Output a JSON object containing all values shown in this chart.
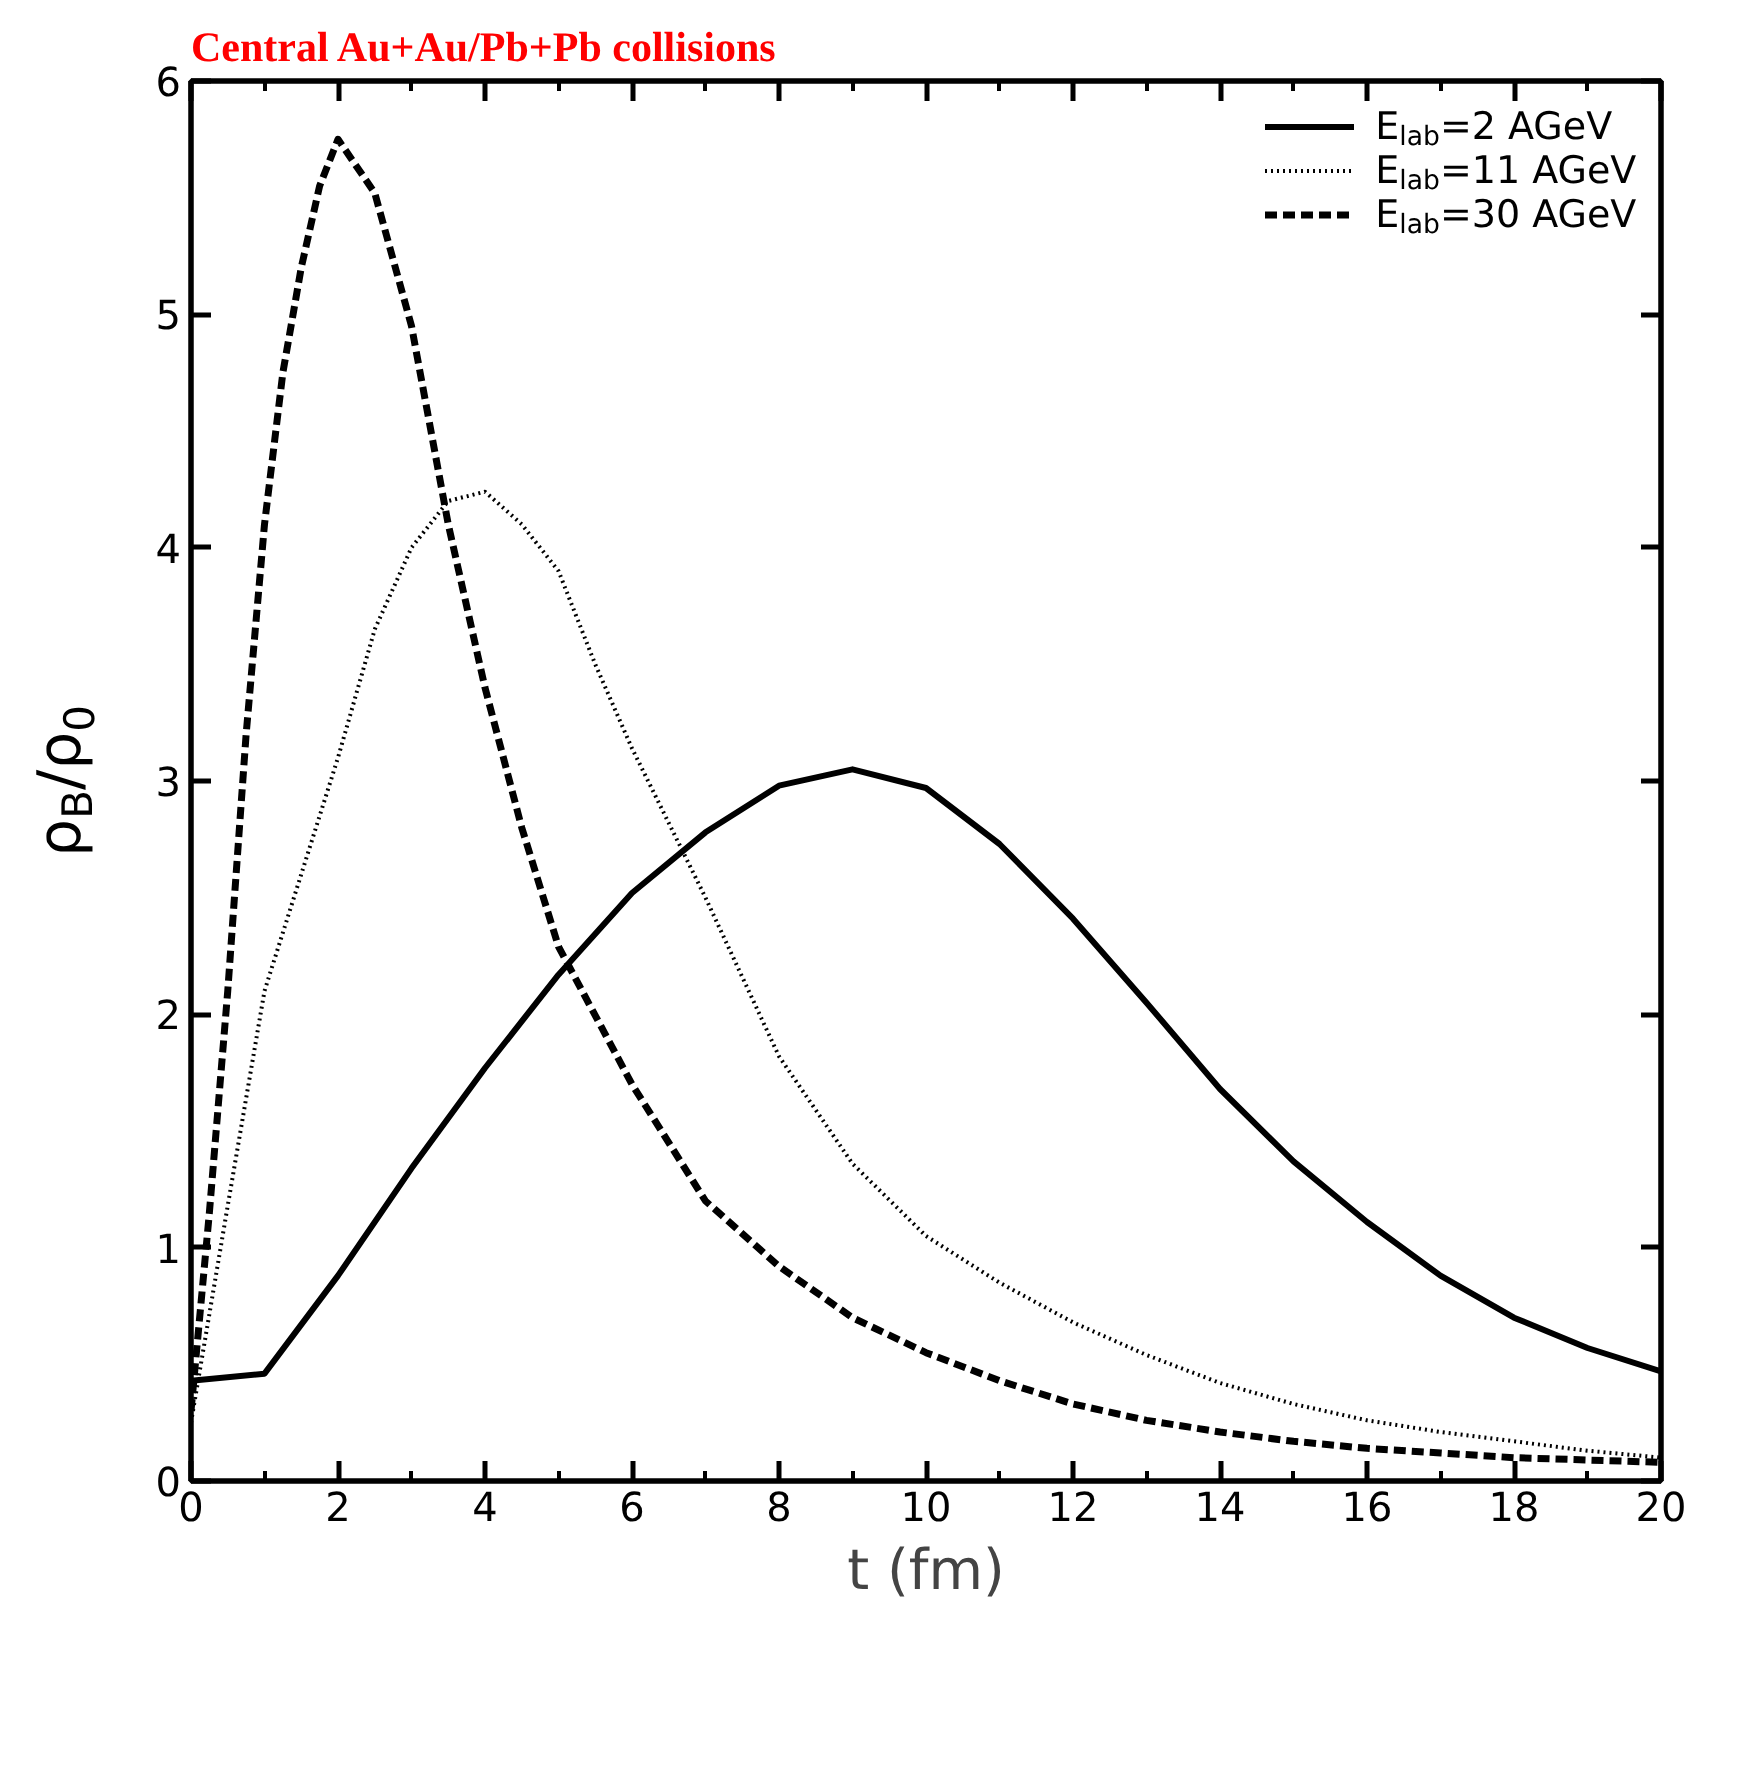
{
  "chart_data": {
    "type": "line",
    "title": "Central Au+Au/Pb+Pb collisions",
    "xlabel": "t (fm)",
    "ylabel": "ρ$_{B}$/ρ$_{0}$",
    "xlim": [
      0,
      20
    ],
    "ylim": [
      0,
      6
    ],
    "xticks": [
      0,
      2,
      4,
      6,
      8,
      10,
      12,
      14,
      16,
      18,
      20
    ],
    "yticks": [
      0,
      1,
      2,
      3,
      4,
      5,
      6
    ],
    "grid": false,
    "legend": "top right",
    "series": [
      {
        "name": "E$_{lab}$=2 AGeV",
        "color": "#000000",
        "line_style": "solid",
        "x": [
          0,
          1,
          2,
          3,
          4,
          5,
          6,
          7,
          8,
          9,
          10,
          11,
          12,
          13,
          14,
          15,
          16,
          17,
          18,
          19,
          20
        ],
        "values": [
          0.43,
          0.46,
          0.88,
          1.34,
          1.77,
          2.17,
          2.52,
          2.78,
          2.98,
          3.05,
          2.97,
          2.73,
          2.41,
          2.05,
          1.68,
          1.37,
          1.11,
          0.88,
          0.7,
          0.57,
          0.47
        ]
      },
      {
        "name": "E$_{lab}$=11 AGeV",
        "color": "#000000",
        "line_style": "dotted",
        "x": [
          0,
          0.5,
          1,
          1.5,
          2,
          2.5,
          3,
          3.5,
          4,
          4.5,
          5,
          5.5,
          6,
          7,
          8,
          9,
          10,
          11,
          12,
          13,
          14,
          15,
          16,
          17,
          18,
          19,
          20
        ],
        "values": [
          0.25,
          1.18,
          2.1,
          2.6,
          3.1,
          3.65,
          4.0,
          4.2,
          4.24,
          4.1,
          3.9,
          3.5,
          3.14,
          2.5,
          1.82,
          1.36,
          1.05,
          0.85,
          0.68,
          0.54,
          0.42,
          0.33,
          0.26,
          0.21,
          0.17,
          0.13,
          0.1
        ]
      },
      {
        "name": "E$_{lab}$=30 AGeV",
        "color": "#000000",
        "line_style": "dashed",
        "x": [
          0,
          0.25,
          0.5,
          0.75,
          1,
          1.25,
          1.5,
          1.75,
          2,
          2.5,
          3,
          3.5,
          4,
          4.5,
          5,
          6,
          7,
          8,
          9,
          10,
          11,
          12,
          13,
          14,
          15,
          16,
          17,
          18,
          19,
          20
        ],
        "values": [
          0.3,
          1.15,
          2.1,
          3.2,
          4.1,
          4.75,
          5.2,
          5.55,
          5.75,
          5.52,
          4.95,
          4.1,
          3.4,
          2.8,
          2.29,
          1.7,
          1.2,
          0.92,
          0.7,
          0.55,
          0.43,
          0.33,
          0.26,
          0.21,
          0.17,
          0.14,
          0.12,
          0.1,
          0.09,
          0.08
        ]
      }
    ]
  }
}
